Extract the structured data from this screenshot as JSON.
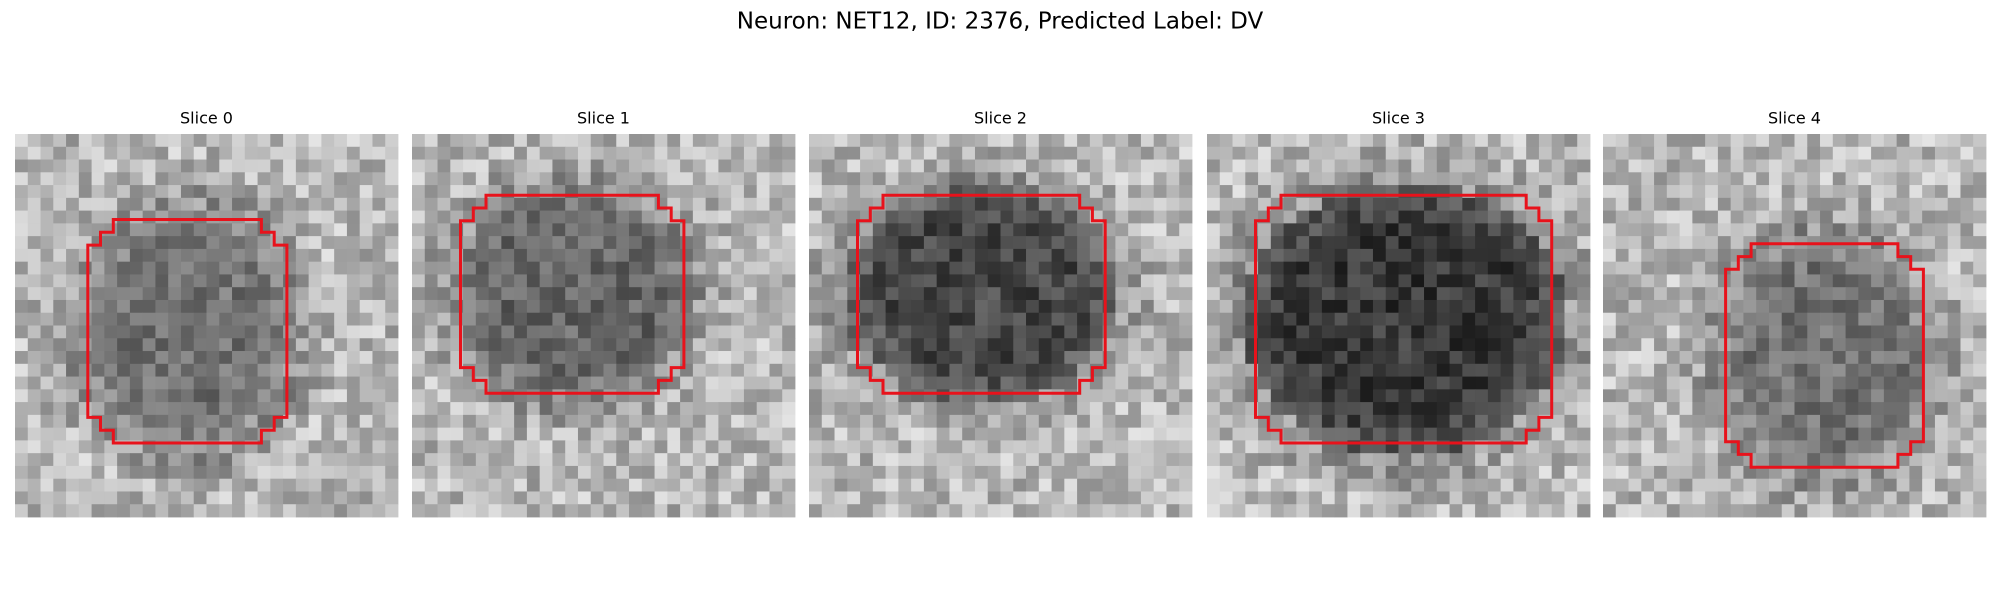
{
  "title": "Neuron: NET12, ID: 2376, Predicted Label: DV",
  "panels": [
    {
      "title": "Slice 0"
    },
    {
      "title": "Slice 1"
    },
    {
      "title": "Slice 2"
    },
    {
      "title": "Slice 3"
    },
    {
      "title": "Slice 4"
    }
  ]
}
